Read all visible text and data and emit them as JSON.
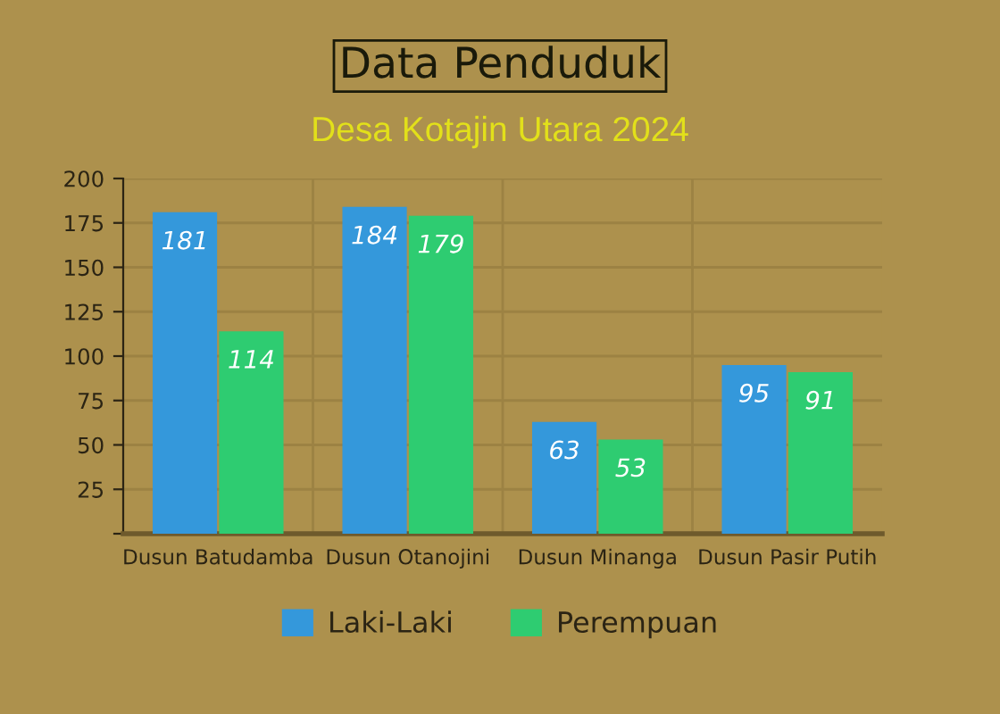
{
  "chart_data": {
    "type": "bar",
    "title": "Data Penduduk",
    "subtitle": "Desa Kotajin Utara 2024",
    "categories": [
      "Dusun Batudamba",
      "Dusun Otanojini",
      "Dusun Minanga",
      "Dusun Pasir Putih"
    ],
    "series": [
      {
        "name": "Laki-Laki",
        "color": "#3498db",
        "values": [
          181,
          184,
          63,
          95
        ]
      },
      {
        "name": "Perempuan",
        "color": "#2ecc71",
        "values": [
          114,
          179,
          53,
          91
        ]
      }
    ],
    "ylim": [
      0,
      200
    ],
    "yticks": [
      {
        "value": 0,
        "label": null
      },
      25,
      50,
      75,
      100,
      125,
      150,
      175,
      200
    ],
    "grid": true,
    "legend": "bottom",
    "data_labels": true
  }
}
